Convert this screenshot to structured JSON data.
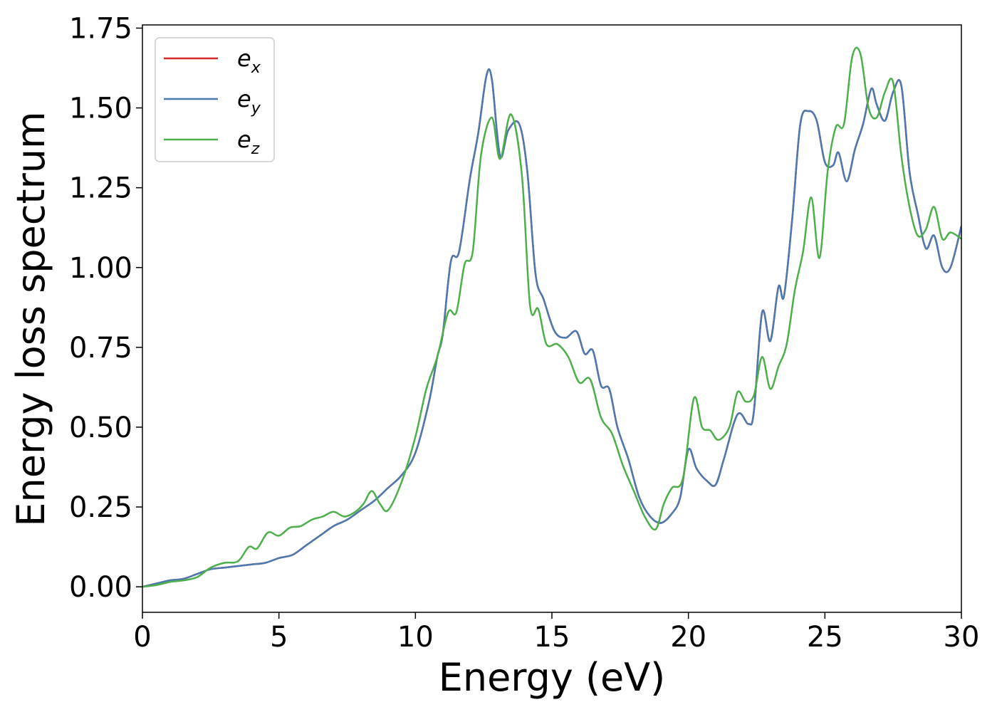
{
  "chart_data": {
    "type": "line",
    "xlabel": "Energy (eV)",
    "ylabel": "Energy loss spectrum",
    "xlim": [
      0,
      30
    ],
    "ylim": [
      -0.08,
      1.76
    ],
    "xticks": [
      0,
      5,
      10,
      15,
      20,
      25,
      30
    ],
    "xtick_labels": [
      "0",
      "5",
      "10",
      "15",
      "20",
      "25",
      "30"
    ],
    "yticks": [
      0,
      0.25,
      0.5,
      0.75,
      1.0,
      1.25,
      1.5,
      1.75
    ],
    "ytick_labels": [
      "0.00",
      "0.25",
      "0.50",
      "0.75",
      "1.00",
      "1.25",
      "1.50",
      "1.75"
    ],
    "grid": false,
    "legend": "top-left",
    "series": [
      {
        "name": "e",
        "sub": "x",
        "color": "#d62728",
        "x": [
          0,
          0.5,
          1,
          1.5,
          2,
          2.5,
          3,
          3.5,
          4,
          4.5,
          5,
          5.5,
          6,
          6.5,
          7,
          7.5,
          8,
          8.5,
          9,
          9.5,
          10,
          10.5,
          10.8,
          11,
          11.3,
          11.6,
          12,
          12.3,
          12.6,
          12.8,
          13.1,
          13.4,
          13.8,
          14.1,
          14.4,
          14.7,
          15.1,
          15.5,
          15.9,
          16.2,
          16.5,
          16.8,
          17.1,
          17.4,
          17.8,
          18.2,
          18.6,
          19,
          19.4,
          19.7,
          20,
          20.3,
          20.7,
          21,
          21.3,
          21.8,
          22.2,
          22.4,
          22.7,
          23,
          23.3,
          23.5,
          23.8,
          24.1,
          24.4,
          24.7,
          25,
          25.3,
          25.5,
          25.8,
          26.1,
          26.4,
          26.7,
          26.9,
          27.2,
          27.5,
          27.8,
          28.1,
          28.4,
          28.7,
          29,
          29.3,
          29.6,
          30
        ],
        "values": [
          0,
          0.01,
          0.02,
          0.025,
          0.04,
          0.055,
          0.06,
          0.065,
          0.07,
          0.075,
          0.09,
          0.1,
          0.13,
          0.16,
          0.19,
          0.21,
          0.24,
          0.27,
          0.31,
          0.35,
          0.42,
          0.58,
          0.72,
          0.79,
          1.02,
          1.05,
          1.28,
          1.42,
          1.6,
          1.59,
          1.35,
          1.43,
          1.45,
          1.3,
          0.98,
          0.9,
          0.8,
          0.78,
          0.8,
          0.73,
          0.74,
          0.63,
          0.62,
          0.5,
          0.4,
          0.28,
          0.22,
          0.2,
          0.23,
          0.28,
          0.43,
          0.37,
          0.33,
          0.32,
          0.4,
          0.54,
          0.51,
          0.55,
          0.86,
          0.77,
          0.94,
          0.91,
          1.15,
          1.45,
          1.49,
          1.46,
          1.33,
          1.32,
          1.36,
          1.27,
          1.37,
          1.45,
          1.56,
          1.51,
          1.46,
          1.55,
          1.57,
          1.3,
          1.17,
          1.06,
          1.1,
          1.0,
          1.0,
          1.13
        ]
      },
      {
        "name": "e",
        "sub": "y",
        "color": "#4a7ab0",
        "x": [
          0,
          0.5,
          1,
          1.5,
          2,
          2.5,
          3,
          3.5,
          4,
          4.5,
          5,
          5.5,
          6,
          6.5,
          7,
          7.5,
          8,
          8.5,
          9,
          9.5,
          10,
          10.5,
          10.8,
          11,
          11.3,
          11.6,
          12,
          12.3,
          12.6,
          12.8,
          13.1,
          13.4,
          13.8,
          14.1,
          14.4,
          14.7,
          15.1,
          15.5,
          15.9,
          16.2,
          16.5,
          16.8,
          17.1,
          17.4,
          17.8,
          18.2,
          18.6,
          19,
          19.4,
          19.7,
          20,
          20.3,
          20.7,
          21,
          21.3,
          21.8,
          22.2,
          22.4,
          22.7,
          23,
          23.3,
          23.5,
          23.8,
          24.1,
          24.4,
          24.7,
          25,
          25.3,
          25.5,
          25.8,
          26.1,
          26.4,
          26.7,
          26.9,
          27.2,
          27.5,
          27.8,
          28.1,
          28.4,
          28.7,
          29,
          29.3,
          29.6,
          30
        ],
        "values": [
          0,
          0.01,
          0.02,
          0.025,
          0.04,
          0.055,
          0.06,
          0.065,
          0.07,
          0.075,
          0.09,
          0.1,
          0.13,
          0.16,
          0.19,
          0.21,
          0.24,
          0.27,
          0.31,
          0.35,
          0.42,
          0.58,
          0.72,
          0.79,
          1.02,
          1.05,
          1.28,
          1.42,
          1.6,
          1.59,
          1.35,
          1.43,
          1.45,
          1.3,
          0.98,
          0.9,
          0.8,
          0.78,
          0.8,
          0.73,
          0.74,
          0.63,
          0.62,
          0.5,
          0.4,
          0.28,
          0.22,
          0.2,
          0.23,
          0.28,
          0.43,
          0.37,
          0.33,
          0.32,
          0.4,
          0.54,
          0.51,
          0.55,
          0.86,
          0.77,
          0.94,
          0.91,
          1.15,
          1.45,
          1.49,
          1.46,
          1.33,
          1.32,
          1.36,
          1.27,
          1.37,
          1.45,
          1.56,
          1.51,
          1.46,
          1.55,
          1.57,
          1.3,
          1.17,
          1.06,
          1.1,
          1.0,
          1.0,
          1.13
        ]
      },
      {
        "name": "e",
        "sub": "z",
        "color": "#4daf4a",
        "x": [
          0,
          0.5,
          1,
          1.5,
          2,
          2.5,
          3,
          3.5,
          3.9,
          4.2,
          4.6,
          5,
          5.4,
          5.8,
          6.2,
          6.6,
          7,
          7.4,
          7.8,
          8.1,
          8.4,
          8.7,
          9,
          9.5,
          10,
          10.4,
          10.8,
          11.2,
          11.5,
          11.8,
          12.1,
          12.4,
          12.8,
          13.1,
          13.5,
          13.9,
          14.2,
          14.5,
          14.8,
          15.2,
          15.6,
          16,
          16.4,
          16.8,
          17.2,
          17.6,
          18,
          18.4,
          18.8,
          19.1,
          19.4,
          19.8,
          20.2,
          20.5,
          20.8,
          21.1,
          21.5,
          21.8,
          22.1,
          22.4,
          22.7,
          23,
          23.3,
          23.6,
          23.9,
          24.2,
          24.5,
          24.8,
          25.1,
          25.4,
          25.7,
          26,
          26.3,
          26.6,
          26.9,
          27.2,
          27.5,
          27.8,
          28.1,
          28.4,
          28.7,
          29,
          29.3,
          29.6,
          30
        ],
        "values": [
          0,
          0.005,
          0.015,
          0.02,
          0.03,
          0.06,
          0.075,
          0.08,
          0.125,
          0.12,
          0.17,
          0.16,
          0.185,
          0.19,
          0.21,
          0.22,
          0.235,
          0.22,
          0.235,
          0.26,
          0.3,
          0.26,
          0.24,
          0.33,
          0.47,
          0.62,
          0.72,
          0.86,
          0.86,
          1.01,
          1.05,
          1.35,
          1.47,
          1.34,
          1.48,
          1.29,
          0.88,
          0.87,
          0.76,
          0.76,
          0.72,
          0.64,
          0.65,
          0.53,
          0.48,
          0.38,
          0.3,
          0.22,
          0.18,
          0.26,
          0.31,
          0.34,
          0.59,
          0.5,
          0.49,
          0.46,
          0.5,
          0.61,
          0.58,
          0.6,
          0.72,
          0.62,
          0.69,
          0.76,
          0.93,
          1.05,
          1.22,
          1.03,
          1.3,
          1.44,
          1.45,
          1.66,
          1.67,
          1.5,
          1.47,
          1.55,
          1.58,
          1.35,
          1.19,
          1.1,
          1.12,
          1.19,
          1.09,
          1.11,
          1.09
        ]
      }
    ]
  }
}
